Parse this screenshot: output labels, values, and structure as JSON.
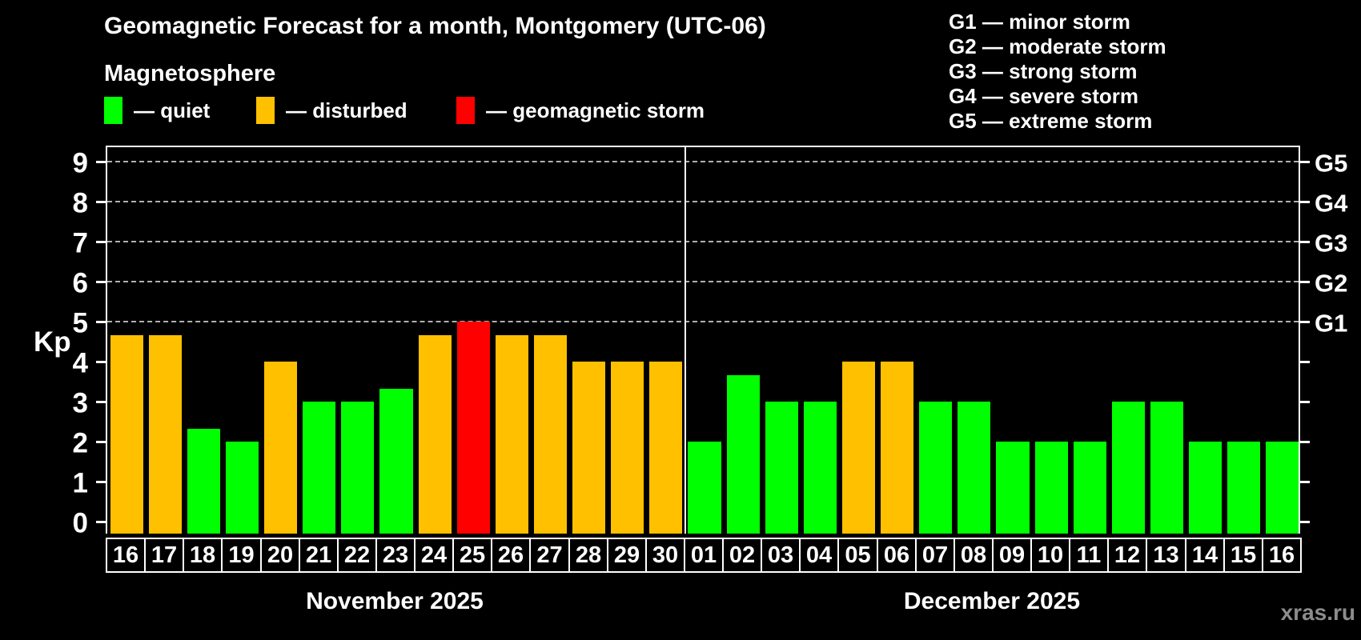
{
  "title": "Geomagnetic Forecast for a month, Montgomery (UTC-06)",
  "subtitle": "Magnetosphere",
  "legend": {
    "items": [
      {
        "key": "quiet",
        "label": "— quiet",
        "color": "#00ff00"
      },
      {
        "key": "disturbed",
        "label": "— disturbed",
        "color": "#ffc000"
      },
      {
        "key": "storm",
        "label": "— geomagnetic storm",
        "color": "#ff0000"
      }
    ]
  },
  "storm_scale_legend": [
    "G1 — minor storm",
    "G2 — moderate storm",
    "G3 — strong storm",
    "G4 — severe storm",
    "G5 — extreme storm"
  ],
  "watermark": "xras.ru",
  "chart_data": {
    "type": "bar",
    "ylabel": "Kp",
    "ylim": [
      -0.3,
      9.4
    ],
    "y_ticks": [
      0,
      1,
      2,
      3,
      4,
      5,
      6,
      7,
      8,
      9
    ],
    "gridlines_kp": [
      5,
      6,
      7,
      8,
      9
    ],
    "grid": "dashed-horizontal-at-storm-levels-only",
    "legend_position": "top-left-and-top-right",
    "right_axis_labels": [
      {
        "label": "G1",
        "kp": 5
      },
      {
        "label": "G2",
        "kp": 6
      },
      {
        "label": "G3",
        "kp": 7
      },
      {
        "label": "G4",
        "kp": 8
      },
      {
        "label": "G5",
        "kp": 9
      }
    ],
    "colors": {
      "quiet": "#00ff00",
      "disturbed": "#ffc000",
      "storm": "#ff0000"
    },
    "months": [
      {
        "label": "November 2025",
        "days": [
          {
            "day": "16",
            "kp": 4.67,
            "status": "disturbed"
          },
          {
            "day": "17",
            "kp": 4.67,
            "status": "disturbed"
          },
          {
            "day": "18",
            "kp": 2.33,
            "status": "quiet"
          },
          {
            "day": "19",
            "kp": 2.0,
            "status": "quiet"
          },
          {
            "day": "20",
            "kp": 4.0,
            "status": "disturbed"
          },
          {
            "day": "21",
            "kp": 3.0,
            "status": "quiet"
          },
          {
            "day": "22",
            "kp": 3.0,
            "status": "quiet"
          },
          {
            "day": "23",
            "kp": 3.33,
            "status": "quiet"
          },
          {
            "day": "24",
            "kp": 4.67,
            "status": "disturbed"
          },
          {
            "day": "25",
            "kp": 5.0,
            "status": "storm"
          },
          {
            "day": "26",
            "kp": 4.67,
            "status": "disturbed"
          },
          {
            "day": "27",
            "kp": 4.67,
            "status": "disturbed"
          },
          {
            "day": "28",
            "kp": 4.0,
            "status": "disturbed"
          },
          {
            "day": "29",
            "kp": 4.0,
            "status": "disturbed"
          },
          {
            "day": "30",
            "kp": 4.0,
            "status": "disturbed"
          }
        ]
      },
      {
        "label": "December 2025",
        "days": [
          {
            "day": "01",
            "kp": 2.0,
            "status": "quiet"
          },
          {
            "day": "02",
            "kp": 3.67,
            "status": "quiet"
          },
          {
            "day": "03",
            "kp": 3.0,
            "status": "quiet"
          },
          {
            "day": "04",
            "kp": 3.0,
            "status": "quiet"
          },
          {
            "day": "05",
            "kp": 4.0,
            "status": "disturbed"
          },
          {
            "day": "06",
            "kp": 4.0,
            "status": "disturbed"
          },
          {
            "day": "07",
            "kp": 3.0,
            "status": "quiet"
          },
          {
            "day": "08",
            "kp": 3.0,
            "status": "quiet"
          },
          {
            "day": "09",
            "kp": 2.0,
            "status": "quiet"
          },
          {
            "day": "10",
            "kp": 2.0,
            "status": "quiet"
          },
          {
            "day": "11",
            "kp": 2.0,
            "status": "quiet"
          },
          {
            "day": "12",
            "kp": 3.0,
            "status": "quiet"
          },
          {
            "day": "13",
            "kp": 3.0,
            "status": "quiet"
          },
          {
            "day": "14",
            "kp": 2.0,
            "status": "quiet"
          },
          {
            "day": "15",
            "kp": 2.0,
            "status": "quiet"
          },
          {
            "day": "16",
            "kp": 2.0,
            "status": "quiet"
          }
        ]
      }
    ]
  }
}
